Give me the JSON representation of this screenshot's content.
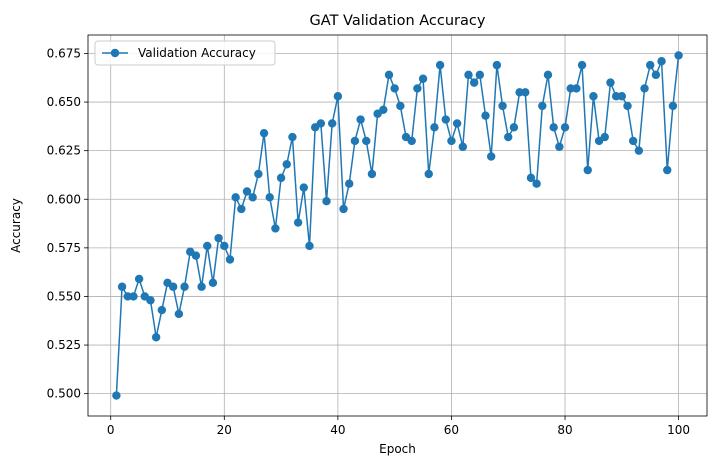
{
  "chart_data": {
    "type": "line",
    "title": "GAT Validation Accuracy",
    "xlabel": "Epoch",
    "ylabel": "Accuracy",
    "xlim": [
      -4,
      105
    ],
    "ylim": [
      0.4885,
      0.6845
    ],
    "xticks": [
      0,
      20,
      40,
      60,
      80,
      100
    ],
    "xtick_labels": [
      "0",
      "20",
      "40",
      "60",
      "80",
      "100"
    ],
    "yticks": [
      0.5,
      0.525,
      0.55,
      0.575,
      0.6,
      0.625,
      0.65,
      0.675
    ],
    "ytick_labels": [
      "0.500",
      "0.525",
      "0.550",
      "0.575",
      "0.600",
      "0.625",
      "0.650",
      "0.675"
    ],
    "grid": true,
    "legend_position": "top-left",
    "colors": {
      "series": "#1f77b4",
      "grid": "#b0b0b0",
      "axis": "#000000"
    },
    "series": [
      {
        "name": "Validation Accuracy",
        "marker": "circle",
        "x": [
          1,
          2,
          3,
          4,
          5,
          6,
          7,
          8,
          9,
          10,
          11,
          12,
          13,
          14,
          15,
          16,
          17,
          18,
          19,
          20,
          21,
          22,
          23,
          24,
          25,
          26,
          27,
          28,
          29,
          30,
          31,
          32,
          33,
          34,
          35,
          36,
          37,
          38,
          39,
          40,
          41,
          42,
          43,
          44,
          45,
          46,
          47,
          48,
          49,
          50,
          51,
          52,
          53,
          54,
          55,
          56,
          57,
          58,
          59,
          60,
          61,
          62,
          63,
          64,
          65,
          66,
          67,
          68,
          69,
          70,
          71,
          72,
          73,
          74,
          75,
          76,
          77,
          78,
          79,
          80,
          81,
          82,
          83,
          84,
          85,
          86,
          87,
          88,
          89,
          90,
          91,
          92,
          93,
          94,
          95,
          96,
          97,
          98,
          99,
          100
        ],
        "y": [
          0.499,
          0.555,
          0.55,
          0.55,
          0.559,
          0.55,
          0.548,
          0.529,
          0.543,
          0.557,
          0.555,
          0.541,
          0.555,
          0.573,
          0.571,
          0.555,
          0.576,
          0.557,
          0.58,
          0.576,
          0.569,
          0.601,
          0.595,
          0.604,
          0.601,
          0.613,
          0.634,
          0.601,
          0.585,
          0.611,
          0.618,
          0.632,
          0.588,
          0.606,
          0.576,
          0.637,
          0.639,
          0.599,
          0.639,
          0.653,
          0.595,
          0.608,
          0.63,
          0.641,
          0.63,
          0.613,
          0.644,
          0.646,
          0.664,
          0.657,
          0.648,
          0.632,
          0.63,
          0.657,
          0.662,
          0.613,
          0.637,
          0.669,
          0.641,
          0.63,
          0.639,
          0.627,
          0.664,
          0.66,
          0.664,
          0.643,
          0.622,
          0.669,
          0.648,
          0.632,
          0.637,
          0.655,
          0.655,
          0.611,
          0.608,
          0.648,
          0.664,
          0.637,
          0.627,
          0.637,
          0.657,
          0.657,
          0.669,
          0.615,
          0.653,
          0.63,
          0.632,
          0.66,
          0.653,
          0.653,
          0.648,
          0.63,
          0.625,
          0.657,
          0.669,
          0.664,
          0.671,
          0.615,
          0.648,
          0.674
        ]
      }
    ]
  }
}
